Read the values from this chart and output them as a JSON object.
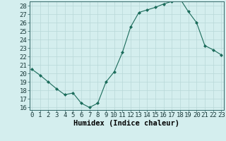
{
  "x": [
    0,
    1,
    2,
    3,
    4,
    5,
    6,
    7,
    8,
    9,
    10,
    11,
    12,
    13,
    14,
    15,
    16,
    17,
    18,
    19,
    20,
    21,
    22,
    23
  ],
  "y": [
    20.5,
    19.8,
    19.0,
    18.2,
    17.5,
    17.7,
    16.5,
    16.0,
    16.5,
    19.0,
    20.2,
    22.5,
    25.5,
    27.2,
    27.5,
    27.8,
    28.2,
    28.5,
    28.8,
    27.3,
    26.0,
    23.3,
    22.8,
    22.2
  ],
  "line_color": "#1a6b5a",
  "marker": "D",
  "marker_size": 2,
  "bg_color": "#d4eeee",
  "grid_color": "#b8d8d8",
  "xlabel": "Humidex (Indice chaleur)",
  "ylim": [
    16,
    28
  ],
  "xlim": [
    0,
    23
  ],
  "yticks": [
    16,
    17,
    18,
    19,
    20,
    21,
    22,
    23,
    24,
    25,
    26,
    27,
    28
  ],
  "xticks": [
    0,
    1,
    2,
    3,
    4,
    5,
    6,
    7,
    8,
    9,
    10,
    11,
    12,
    13,
    14,
    15,
    16,
    17,
    18,
    19,
    20,
    21,
    22,
    23
  ],
  "label_fontsize": 7.5,
  "tick_fontsize": 6.5
}
